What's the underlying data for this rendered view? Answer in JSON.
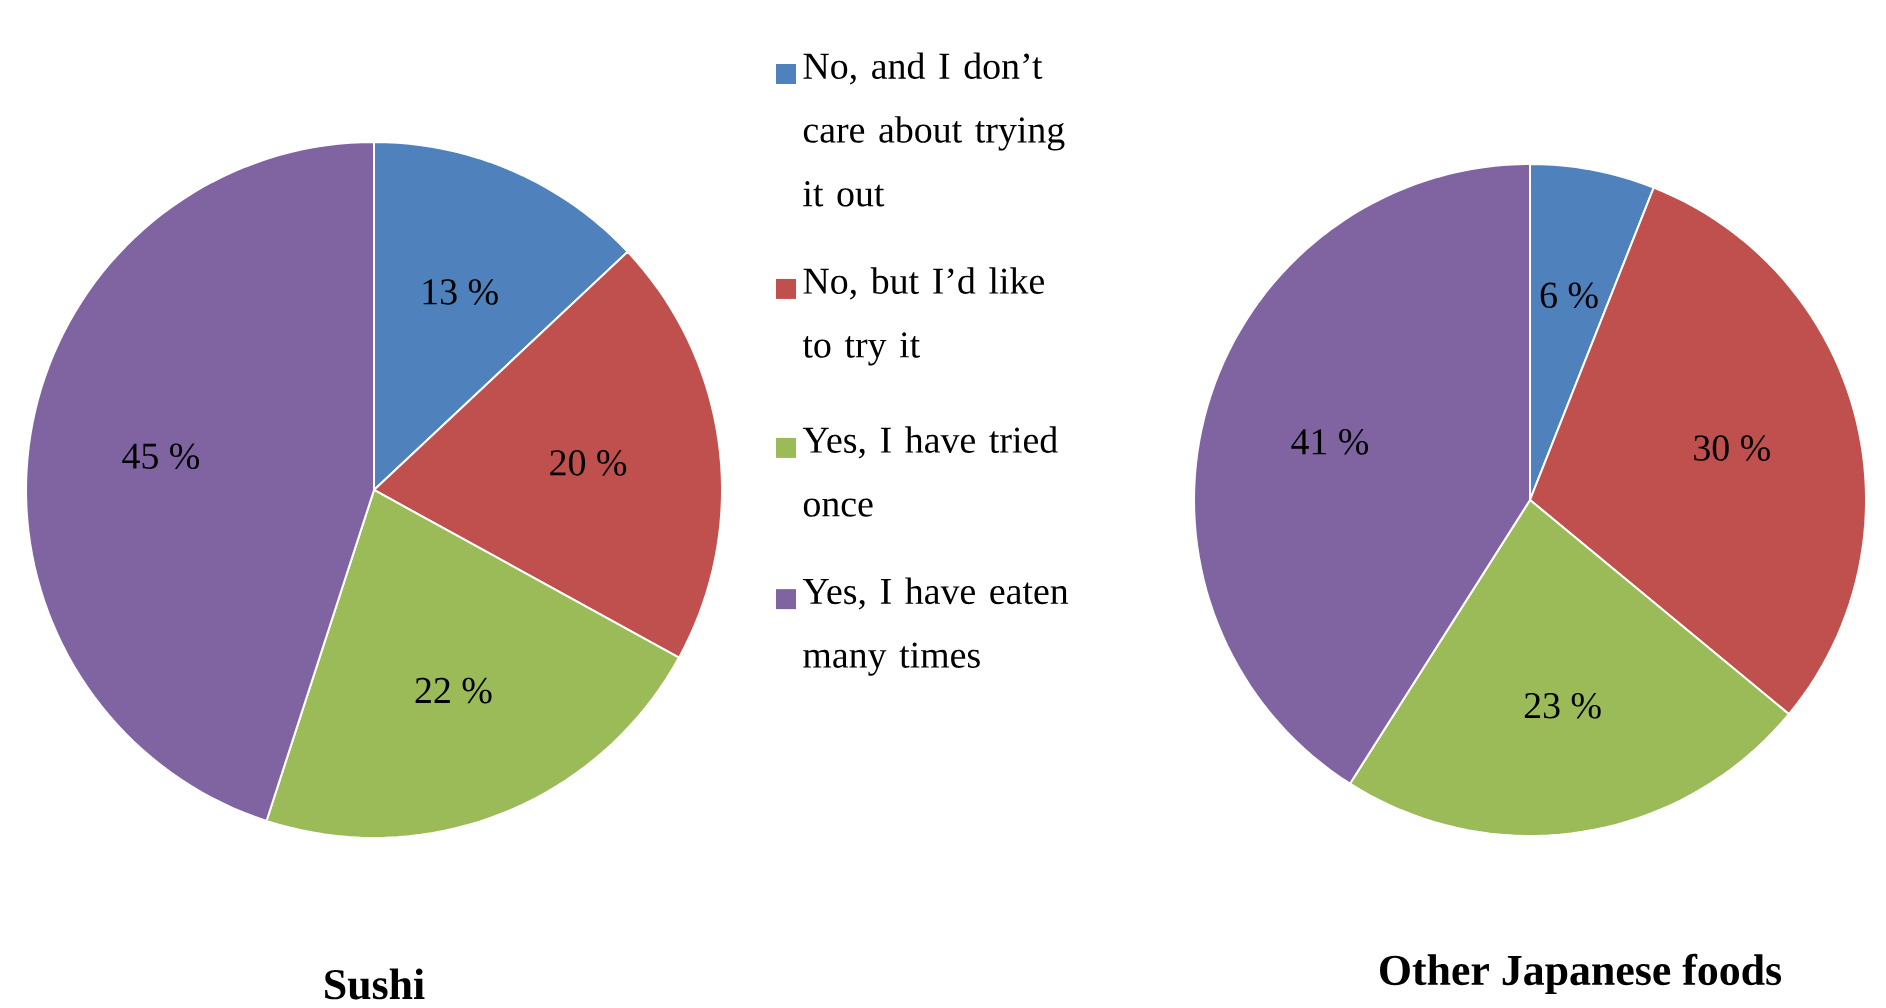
{
  "chart_data": [
    {
      "type": "pie",
      "title": "Sushi",
      "legend": "right",
      "categories": [
        "No, and I don’t care about trying it out",
        "No, but I’d like to try it",
        "Yes, I have tried once",
        "Yes, I have eaten many times"
      ],
      "values": [
        13,
        20,
        22,
        45
      ],
      "value_labels": [
        "13 %",
        "20 %",
        "22 %",
        "45 %"
      ],
      "colors": [
        "#4f81bd",
        "#c0504d",
        "#9bbb59",
        "#8064a2"
      ]
    },
    {
      "type": "pie",
      "title": "Other Japanese foods",
      "values": [
        6,
        30,
        23,
        41
      ],
      "value_labels": [
        "6 %",
        "30 %",
        "23 %",
        "41 %"
      ],
      "colors": [
        "#4f81bd",
        "#c0504d",
        "#9bbb59",
        "#8064a2"
      ]
    }
  ]
}
